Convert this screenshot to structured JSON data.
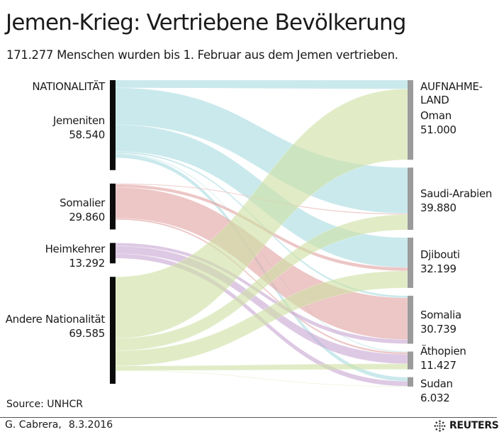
{
  "chart_data": {
    "type": "sankey",
    "title": "Jemen-Krieg: Vertriebene Bevölkerung",
    "subtitle": "171.277 Menschen wurden bis 1. Februar aus dem Jemen vertrieben.",
    "source_header": "NATIONALITÄT",
    "target_header_line1": "AUFNAHME-",
    "target_header_line2": "LAND",
    "sources": [
      {
        "name": "Jemeniten",
        "value_label": "58.540",
        "value": 58540,
        "color": "#a9dbe0"
      },
      {
        "name": "Somalier",
        "value_label": "29.860",
        "value": 29860,
        "color": "#e2a3a3"
      },
      {
        "name": "Heimkehrer",
        "value_label": "13.292",
        "value": 13292,
        "color": "#c9a8d4"
      },
      {
        "name": "Andere Nationalität",
        "value_label": "69.585",
        "value": 69585,
        "color": "#cfe0a4"
      }
    ],
    "targets": [
      {
        "name": "Oman",
        "value_label": "51.000",
        "value": 51000
      },
      {
        "name": "Saudi-Arabien",
        "value_label": "39.880",
        "value": 39880
      },
      {
        "name": "Djibouti",
        "value_label": "32.199",
        "value": 32199
      },
      {
        "name": "Somalia",
        "value_label": "30.739",
        "value": 30739
      },
      {
        "name": "Äthopien",
        "value_label": "11.427",
        "value": 11427
      },
      {
        "name": "Sudan",
        "value_label": "6.032",
        "value": 6032
      }
    ],
    "flows": [
      {
        "from": "Jemeniten",
        "to": "Oman",
        "value": 5000
      },
      {
        "from": "Jemeniten",
        "to": "Saudi-Arabien",
        "value": 24000
      },
      {
        "from": "Jemeniten",
        "to": "Djibouti",
        "value": 17500
      },
      {
        "from": "Jemeniten",
        "to": "Somalia",
        "value": 1000
      },
      {
        "from": "Jemeniten",
        "to": "Äthopien",
        "value": 500
      },
      {
        "from": "Jemeniten",
        "to": "Sudan",
        "value": 2540
      },
      {
        "from": "Somalier",
        "to": "Somalia",
        "value": 20000
      },
      {
        "from": "Somalier",
        "to": "Djibouti",
        "value": 2000
      },
      {
        "from": "Somalier",
        "to": "Äthopien",
        "value": 1000
      },
      {
        "from": "Somalier",
        "to": "Saudi-Arabien",
        "value": 500
      },
      {
        "from": "Heimkehrer",
        "to": "Somalia",
        "value": 2000
      },
      {
        "from": "Heimkehrer",
        "to": "Äthopien",
        "value": 5000
      },
      {
        "from": "Heimkehrer",
        "to": "Sudan",
        "value": 3000
      },
      {
        "from": "Andere Nationalität",
        "to": "Oman",
        "value": 40000
      },
      {
        "from": "Andere Nationalität",
        "to": "Saudi-Arabien",
        "value": 8000
      },
      {
        "from": "Andere Nationalität",
        "to": "Djibouti",
        "value": 10000
      },
      {
        "from": "Andere Nationalität",
        "to": "Äthopien",
        "value": 3000
      },
      {
        "from": "Andere Nationalität",
        "to": "Sudan",
        "value": 300
      }
    ]
  },
  "source_note": "Source: UNHCR",
  "credit": {
    "author": "G. Cabrera,",
    "date": "8.3.2016",
    "brand": "REUTERS"
  }
}
